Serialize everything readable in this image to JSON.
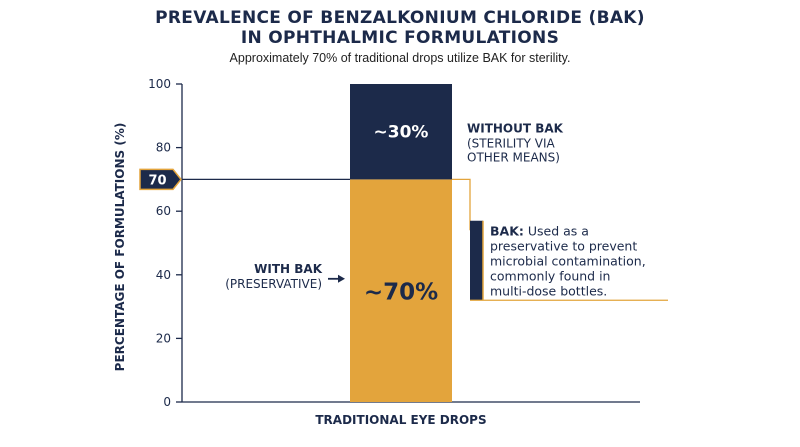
{
  "colors": {
    "navy": "#1c2a4a",
    "gold": "#e3a43c",
    "axis": "#1c2a4a"
  },
  "chart_data": {
    "type": "bar",
    "stacked": true,
    "title_lines": [
      "PREVALENCE OF BENZALKONIUM CHLORIDE (BAK)",
      "IN OPHTHALMIC FORMULATIONS"
    ],
    "subtitle": "Approximately 70% of traditional drops utilize BAK for sterility.",
    "ylabel": "PERCENTAGE OF FORMULATIONS (%)",
    "ylim": [
      0,
      100
    ],
    "yticks": [
      0,
      20,
      40,
      60,
      80,
      100
    ],
    "categories": [
      "TRADITIONAL EYE DROPS"
    ],
    "series": [
      {
        "name": "WITH BAK (PRESERVATIVE)",
        "values": [
          70
        ],
        "label": "~70%",
        "color": "#e3a43c"
      },
      {
        "name": "WITHOUT BAK (STERILITY VIA OTHER MEANS)",
        "values": [
          30
        ],
        "label": "~30%",
        "color": "#1c2a4a"
      }
    ],
    "reference_line": {
      "value": 70,
      "label": "70"
    },
    "annotations": {
      "with_bak_lines": [
        "WITH BAK",
        "(PRESERVATIVE)"
      ],
      "without_bak_title": "WITHOUT BAK",
      "without_bak_lines": [
        "(STERILITY VIA",
        "OTHER MEANS)"
      ],
      "callout_bold": "BAK:",
      "callout_first": " Used as a",
      "callout_lines": [
        "preservative to prevent",
        "microbial contamination,",
        "commonly found in",
        "multi-dose bottles."
      ]
    },
    "grid": false
  }
}
